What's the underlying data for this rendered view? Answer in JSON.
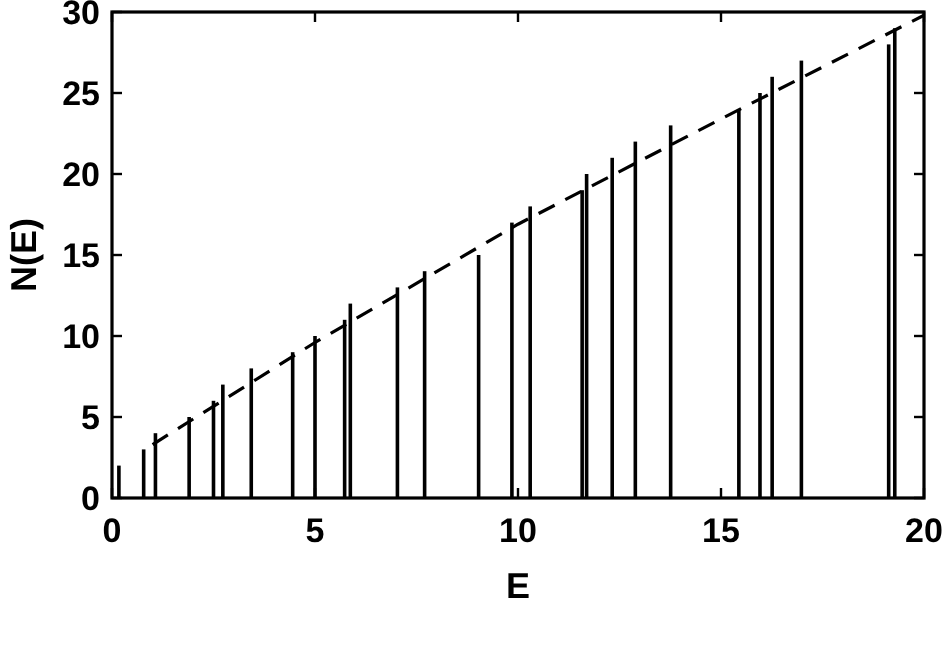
{
  "chart_data": {
    "type": "bar",
    "xlabel": "E",
    "ylabel": "N(E)",
    "xlim": [
      0,
      20
    ],
    "ylim": [
      0,
      30
    ],
    "xticks": [
      0,
      5,
      10,
      15,
      20
    ],
    "yticks": [
      0,
      5,
      10,
      15,
      20,
      25,
      30
    ],
    "grid": false,
    "series": [
      {
        "color": "#000000",
        "x": [
          0.17,
          0.78,
          1.07,
          1.9,
          2.5,
          2.73,
          3.43,
          4.45,
          5.0,
          5.73,
          5.87,
          7.03,
          7.7,
          9.03,
          9.85,
          10.3,
          11.58,
          11.69,
          12.32,
          12.89,
          13.76,
          15.44,
          15.96,
          16.26,
          16.98,
          19.13,
          19.28
        ],
        "values": [
          2,
          3,
          4,
          5,
          6,
          7,
          8,
          9,
          10,
          11,
          12,
          13,
          14,
          15,
          17,
          18,
          19,
          20,
          21,
          22,
          23,
          24,
          25,
          26,
          27,
          28,
          29
        ]
      },
      {
        "type": "line",
        "color": "#000000",
        "line_style": "dashed",
        "marker": "none",
        "x": [
          1,
          5,
          10,
          15,
          20
        ],
        "values": [
          3.3,
          9.6,
          16.9,
          23.4,
          29.8
        ]
      }
    ]
  }
}
